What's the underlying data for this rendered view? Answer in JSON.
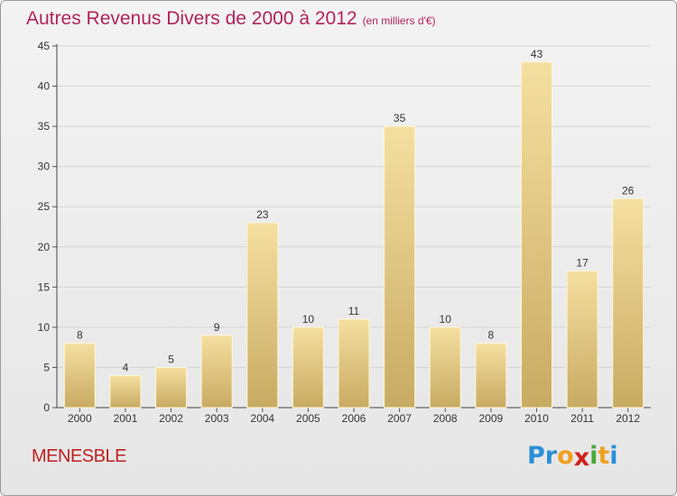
{
  "header": {
    "title": "Autres Revenus Divers de 2000 à 2012",
    "subtitle": "(en milliers d'€)"
  },
  "footer": {
    "place_name": "MENESBLE",
    "logo_letters": [
      "P",
      "r",
      "o",
      "x",
      "i",
      "t",
      "i"
    ],
    "logo_colors": [
      "#2a8fd8",
      "#2a8fd8",
      "#f0a020",
      "#d0201c",
      "#4aa83a",
      "#f0a020",
      "#2a8fd8"
    ]
  },
  "colors": {
    "title": "#b0245a",
    "place_name": "#c02020",
    "bar_light": "#f5dfa0",
    "bar_dark": "#c8ab62",
    "grid": "#d4d4d4"
  },
  "chart_data": {
    "type": "bar",
    "categories": [
      "2000",
      "2001",
      "2002",
      "2003",
      "2004",
      "2005",
      "2006",
      "2007",
      "2008",
      "2009",
      "2010",
      "2011",
      "2012"
    ],
    "values": [
      8,
      4,
      5,
      9,
      23,
      10,
      11,
      35,
      10,
      8,
      43,
      17,
      26
    ],
    "data_labels": [
      "8",
      "4",
      "5",
      "9",
      "23",
      "10",
      "11",
      "35",
      "10",
      "8",
      "43",
      "17",
      "26"
    ],
    "y_ticks": [
      "0",
      "5",
      "10",
      "15",
      "20",
      "25",
      "30",
      "35",
      "40",
      "45"
    ],
    "ylim": [
      0,
      45
    ],
    "grid": true,
    "legend": false
  }
}
